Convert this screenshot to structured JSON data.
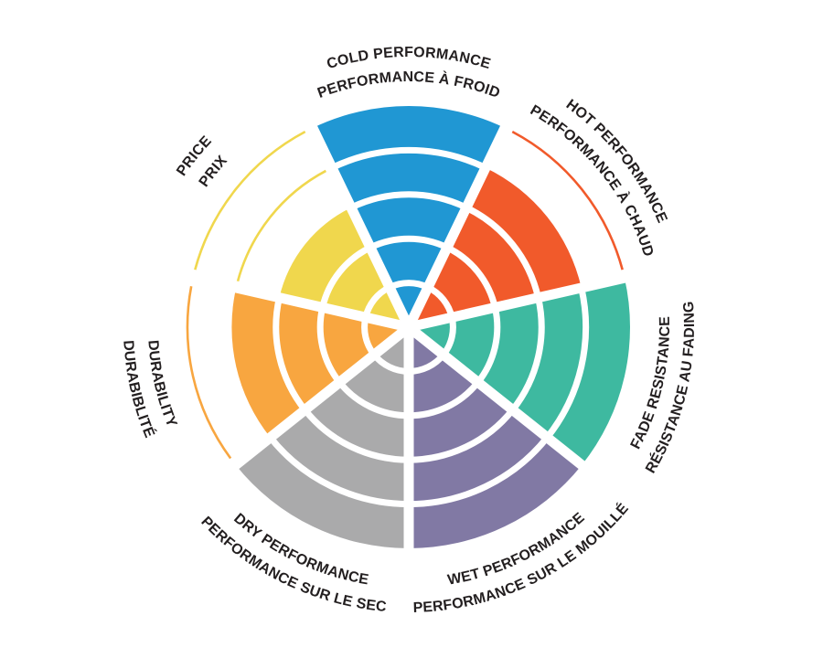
{
  "chart_data": {
    "type": "polar-rating-wheel",
    "order": "clockwise-from-top",
    "rings": 5,
    "max_rating": 5,
    "background": "#FFFFFF",
    "text_color": "#231F20",
    "categories": [
      {
        "id": "cold-performance",
        "label_outer": "COLD PERFORMANCE",
        "label_inner": "PERFORMANCE À FROID",
        "value": 5,
        "color": "#2097D3"
      },
      {
        "id": "hot-performance",
        "label_outer": "HOT PERFORMANCE",
        "label_inner": "PERFORMANCE À CHAUD",
        "value": 4,
        "color": "#F15A2B"
      },
      {
        "id": "fade-resistance",
        "label_outer": "RÉSISTANCE AU FADING",
        "label_inner": "FADE RESISTANCE",
        "value": 5,
        "color": "#3EB9A0"
      },
      {
        "id": "wet-performance",
        "label_outer": "PERFORMANCE SUR LE MOUILLÉ",
        "label_inner": "WET PERFORMANCE",
        "value": 5,
        "color": "#8179A4"
      },
      {
        "id": "dry-performance",
        "label_outer": "PERFORMANCE SUR LE SEC",
        "label_inner": "DRY PERFORMANCE",
        "value": 5,
        "color": "#AAAAAB"
      },
      {
        "id": "durability",
        "label_outer": "DURABIBLITÉ",
        "label_inner": "DURABILITY",
        "value": 4,
        "color": "#F8A640"
      },
      {
        "id": "price",
        "label_outer": "PRICE",
        "label_inner": "PRIX",
        "value": 3,
        "color": "#F0D74D"
      }
    ]
  }
}
